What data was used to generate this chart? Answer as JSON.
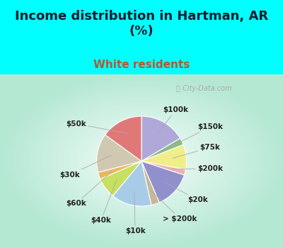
{
  "title": "Income distribution in Hartman, AR\n(%)",
  "subtitle": "White residents",
  "title_color": "#1a1a2e",
  "subtitle_color": "#b05a2f",
  "bg_cyan": "#00ffff",
  "watermark": "City-Data.com",
  "slices": [
    {
      "label": "$100k",
      "value": 16.5,
      "color": "#b0a8d8",
      "start_angle": 90
    },
    {
      "label": "$150k",
      "value": 2.5,
      "color": "#88bb88"
    },
    {
      "label": "$75k",
      "value": 9.0,
      "color": "#f0ee88"
    },
    {
      "label": "$200k",
      "value": 2.0,
      "color": "#f0b0b0"
    },
    {
      "label": "$20k",
      "value": 13.5,
      "color": "#9090cc"
    },
    {
      "label": "> $200k",
      "value": 3.0,
      "color": "#c8b898"
    },
    {
      "label": "$10k",
      "value": 14.5,
      "color": "#a8cce8"
    },
    {
      "label": "$40k",
      "value": 7.5,
      "color": "#c8e060"
    },
    {
      "label": "$60k",
      "value": 2.5,
      "color": "#e8b860"
    },
    {
      "label": "$30k",
      "value": 14.0,
      "color": "#d0c8b0"
    },
    {
      "label": "$50k",
      "value": 15.0,
      "color": "#e07878"
    }
  ],
  "label_fontsize": 7.5,
  "title_fontsize": 13,
  "subtitle_fontsize": 11
}
